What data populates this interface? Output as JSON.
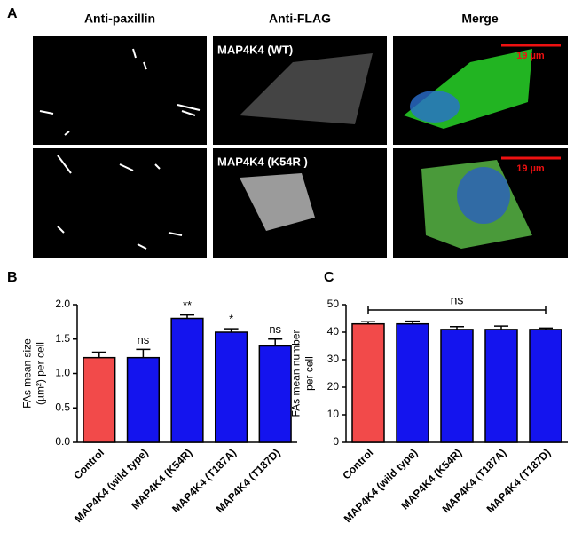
{
  "panel_a": {
    "label": "A",
    "columns": [
      "Anti-paxillin",
      "Anti-FLAG",
      "Merge"
    ],
    "row_labels": [
      "MAP4K4 (WT)",
      "MAP4K4 (K54R )"
    ],
    "scale_bars": [
      "19 µm",
      "19 µm"
    ]
  },
  "chart_data": [
    {
      "type": "bar",
      "panel": "B",
      "ylabel_lines": [
        "FAs mean size",
        "(µm²) per cell"
      ],
      "categories": [
        "Control",
        "MAP4K4 (wild type)",
        "MAP4K4 (K54R)",
        "MAP4K4 (T187A)",
        "MAP4K4 (T187D)"
      ],
      "values": [
        1.23,
        1.23,
        1.8,
        1.6,
        1.4
      ],
      "errors": [
        0.08,
        0.12,
        0.05,
        0.05,
        0.1
      ],
      "colors": [
        "#f24a4a",
        "#1414ee",
        "#1414ee",
        "#1414ee",
        "#1414ee"
      ],
      "annotations": [
        null,
        "ns",
        "**",
        "*",
        "ns"
      ],
      "ylim": [
        0,
        2.0
      ],
      "yticks": [
        {
          "value": 0,
          "label": "0.0"
        },
        {
          "value": 0.5,
          "label": "0.5"
        },
        {
          "value": 1.0,
          "label": "1.0"
        },
        {
          "value": 1.5,
          "label": "1.5"
        },
        {
          "value": 2.0,
          "label": "2.0"
        }
      ]
    },
    {
      "type": "bar",
      "panel": "C",
      "ylabel_lines": [
        "FAs mean number",
        "per cell"
      ],
      "categories": [
        "Control",
        "MAP4K4 (wild type)",
        "MAP4K4 (K54R)",
        "MAP4K4 (T187A)",
        "MAP4K4 (T187D)"
      ],
      "values": [
        43,
        43,
        41,
        41,
        41
      ],
      "errors": [
        0.8,
        1,
        1,
        1.2,
        0.5
      ],
      "colors": [
        "#f24a4a",
        "#1414ee",
        "#1414ee",
        "#1414ee",
        "#1414ee"
      ],
      "bracket_label": "ns",
      "ylim": [
        0,
        50
      ],
      "yticks": [
        0,
        10,
        20,
        30,
        40,
        50
      ]
    }
  ]
}
